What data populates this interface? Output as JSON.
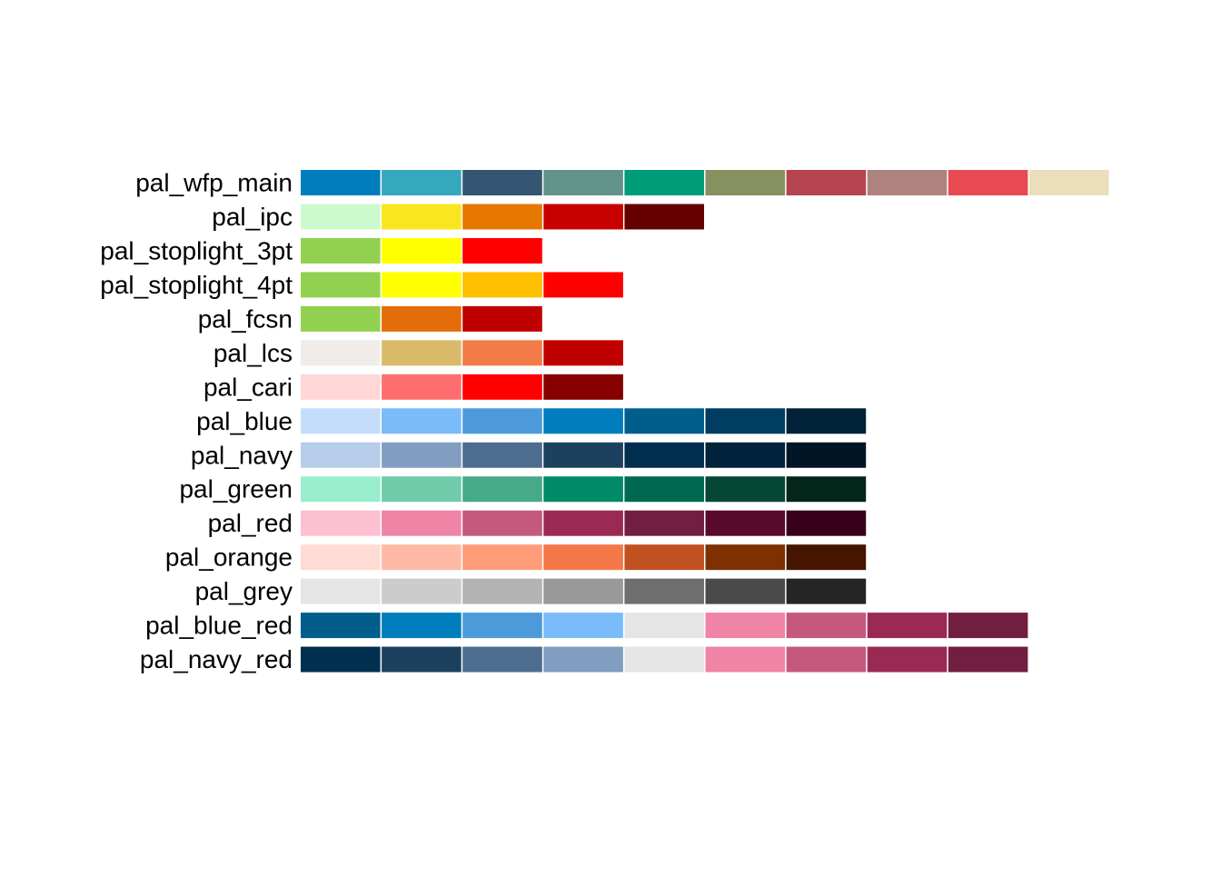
{
  "chart_data": {
    "type": "heatmap",
    "title": "",
    "xlabel": "",
    "ylabel": "",
    "grid": false,
    "legend": "none",
    "palettes": [
      {
        "name": "pal_wfp_main",
        "colors": [
          "#007DBC",
          "#34A8BC",
          "#345672",
          "#62938A",
          "#009B77",
          "#869160",
          "#B54350",
          "#AE837D",
          "#E74A53",
          "#EBDFBB"
        ]
      },
      {
        "name": "pal_ipc",
        "colors": [
          "#CDFACD",
          "#FAE61E",
          "#E67800",
          "#C80000",
          "#640000"
        ]
      },
      {
        "name": "pal_stoplight_3pt",
        "colors": [
          "#92D050",
          "#FFFF00",
          "#FF0000"
        ]
      },
      {
        "name": "pal_stoplight_4pt",
        "colors": [
          "#92D050",
          "#FFFF00",
          "#FFC000",
          "#FF0000"
        ]
      },
      {
        "name": "pal_fcsn",
        "colors": [
          "#92D050",
          "#E46C0A",
          "#C00000"
        ]
      },
      {
        "name": "pal_lcs",
        "colors": [
          "#F1ECE8",
          "#D8BA6A",
          "#F37B48",
          "#C00000"
        ]
      },
      {
        "name": "pal_cari",
        "colors": [
          "#FFD7D7",
          "#FF6E6E",
          "#FF0000",
          "#870000"
        ]
      },
      {
        "name": "pal_blue",
        "colors": [
          "#C4DDFA",
          "#7ABBFA",
          "#4C9ADA",
          "#007DBC",
          "#005D8C",
          "#003D61",
          "#002138"
        ]
      },
      {
        "name": "pal_navy",
        "colors": [
          "#B5CCEA",
          "#819EC0",
          "#4E6D8E",
          "#1C405E",
          "#002F4F",
          "#00223A",
          "#001525"
        ]
      },
      {
        "name": "pal_green",
        "colors": [
          "#98EECC",
          "#6FCBA9",
          "#46AA88",
          "#008A68",
          "#00694F",
          "#054634",
          "#04261A"
        ]
      },
      {
        "name": "pal_red",
        "colors": [
          "#FCC0D1",
          "#F084A6",
          "#C4597D",
          "#9A2A53",
          "#711E40",
          "#580A2D",
          "#38001B"
        ]
      },
      {
        "name": "pal_orange",
        "colors": [
          "#FFDBD4",
          "#FFBAA6",
          "#FF9C79",
          "#F47847",
          "#C05221",
          "#7F3000",
          "#461500"
        ]
      },
      {
        "name": "pal_grey",
        "colors": [
          "#E5E5E5",
          "#CCCCCC",
          "#B3B3B3",
          "#999999",
          "#6E6E6E",
          "#4A4A4A",
          "#252525"
        ]
      },
      {
        "name": "pal_blue_red",
        "colors": [
          "#005D8C",
          "#007DBC",
          "#4C9ADA",
          "#7ABBFA",
          "#E5E5E5",
          "#F084A6",
          "#C4597D",
          "#9A2A53",
          "#711E40"
        ]
      },
      {
        "name": "pal_navy_red",
        "colors": [
          "#00304F",
          "#1C405E",
          "#4E6D8E",
          "#819EC0",
          "#E5E5E5",
          "#F084A6",
          "#C4597D",
          "#9A2A53",
          "#711E40"
        ]
      }
    ]
  }
}
